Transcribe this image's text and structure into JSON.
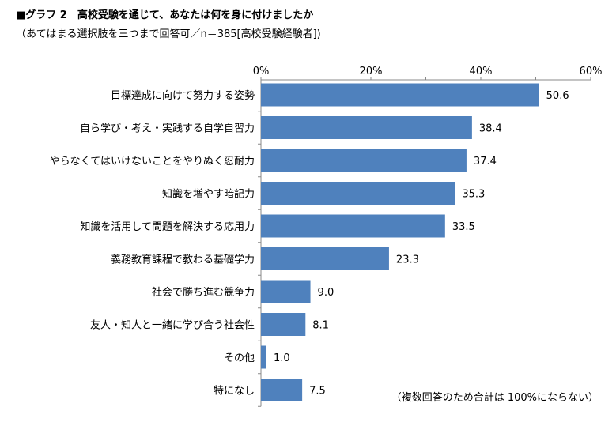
{
  "chart_data": {
    "type": "bar",
    "orientation": "horizontal",
    "title": "■グラフ 2　高校受験を通じて、あなたは何を身に付けましたか",
    "subtitle": "（あてはまる選択肢を三つまで回答可／n＝385[高校受験経験者])",
    "note": "（複数回答のため合計は 100%にならない）",
    "categories": [
      "目標達成に向けて努力する姿勢",
      "自ら学び・考え・実践する自学自習力",
      "やらなくてはいけないことをやりぬく忍耐力",
      "知識を増やす暗記力",
      "知識を活用して問題を解決する応用力",
      "義務教育課程で教わる基礎学力",
      "社会で勝ち進む競争力",
      "友人・知人と一緒に学び合う社会性",
      "その他",
      "特になし"
    ],
    "values": [
      50.6,
      38.4,
      37.4,
      35.3,
      33.5,
      23.3,
      9.0,
      8.1,
      1.0,
      7.5
    ],
    "value_labels": [
      "50.6",
      "38.4",
      "37.4",
      "35.3",
      "33.5",
      "23.3",
      "9.0",
      "8.1",
      "1.0",
      "7.5"
    ],
    "xlim": [
      0,
      60
    ],
    "ticks": [
      0,
      20,
      40,
      60
    ],
    "tick_labels": [
      "0%",
      "20%",
      "40%",
      "60%"
    ],
    "grid": false,
    "bar_color": "#4f81bd",
    "axis_color": "#888888"
  }
}
